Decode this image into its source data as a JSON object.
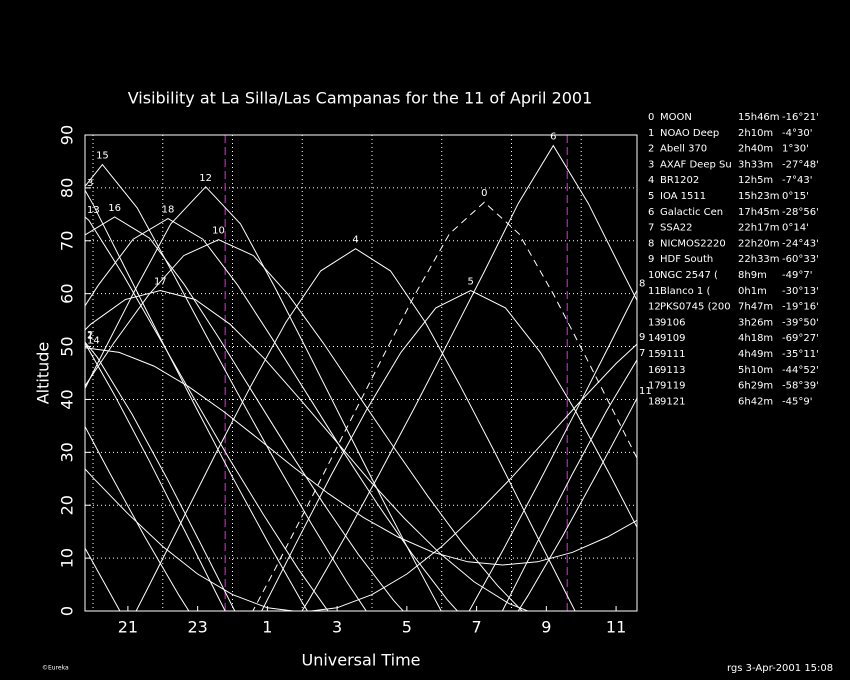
{
  "chart_data": {
    "type": "line",
    "title": "Visibility at La Silla/Las Campanas for the 11 of April 2001",
    "x_label": "Universal Time",
    "y_label": "Altitude",
    "xlim": [
      19.77,
      35.6
    ],
    "ylim": [
      0,
      90
    ],
    "xticks": [
      21,
      23,
      {
        "value": 25,
        "label": "1"
      },
      {
        "value": 27,
        "label": "3"
      },
      {
        "value": 29,
        "label": "5"
      },
      {
        "value": 31,
        "label": "7"
      },
      {
        "value": 33,
        "label": "9"
      },
      {
        "value": 35,
        "label": "11"
      }
    ],
    "xgrid": [
      20,
      22,
      24,
      26,
      28,
      30,
      32,
      34
    ],
    "yticks": [
      0,
      10,
      20,
      30,
      40,
      50,
      60,
      70,
      80,
      90
    ],
    "grid": true,
    "line_color": "#ffffff",
    "twilight": [
      23.79,
      33.6
    ],
    "twilight_color": "#c020c0",
    "footer": "rgs  3-Apr-2001 15:08",
    "logo": "©Eureka",
    "series": [
      {
        "label": "0",
        "name": "MOON",
        "ra": "15h46m",
        "dec": "-16°21'",
        "dash": true,
        "x": [
          23.22,
          24.22,
          25.22,
          26.22,
          27.22,
          28.22,
          29.22,
          30.22,
          31.22,
          32.22,
          33.22,
          34.22,
          35.22,
          36.22
        ],
        "values": [
          -16.3,
          -4.5,
          7.9,
          20.8,
          33.9,
          46.9,
          59.7,
          71.3,
          77.3,
          71.3,
          59.7,
          46.9,
          33.9,
          20.8
        ]
      },
      {
        "label": "1",
        "name": "NOAO Deep",
        "ra": "2h10m",
        "dec": "-4°30'",
        "x": [
          19.62,
          20.62,
          21.62,
          22.62,
          23.62,
          24.62
        ],
        "values": [
          52.4,
          40.8,
          28.3,
          15.3,
          2.2,
          -10.8
        ]
      },
      {
        "label": "2",
        "name": "Abell 370",
        "ra": "2h40m",
        "dec": "1°30'",
        "x": [
          19.12,
          20.12,
          21.12,
          22.12,
          23.12,
          24.12
        ],
        "values": [
          56.1,
          48.0,
          37.2,
          25.1,
          12.3,
          -0.7
        ]
      },
      {
        "label": "3",
        "name": "AXAF Deep Su",
        "ra": "3h33m",
        "dec": "-27°48'",
        "x": [
          19,
          20,
          21,
          22,
          23,
          24,
          25,
          26,
          27
        ],
        "values": [
          88.5,
          76.9,
          63.8,
          50.7,
          37.9,
          25.3,
          13.2,
          1.6,
          -9.1
        ]
      },
      {
        "label": "4",
        "name": "BR1202",
        "ra": "12h5m",
        "dec": "-7°43'",
        "x": [
          20.53,
          21.53,
          22.53,
          23.53,
          24.53,
          25.53,
          26.53,
          27.53,
          28.53,
          29.53,
          30.53,
          31.53,
          32.53,
          33.53,
          34.53
        ],
        "values": [
          -9.1,
          3.8,
          16.8,
          29.9,
          42.6,
          54.6,
          64.3,
          68.5,
          64.3,
          54.6,
          42.6,
          29.9,
          16.8,
          3.8,
          -9.1
        ]
      },
      {
        "label": "5",
        "name": "IOA 1511",
        "ra": "15h23m",
        "dec": "0°15'",
        "x": [
          23.83,
          24.83,
          25.83,
          26.83,
          27.83,
          28.83,
          29.83,
          30.83,
          31.83,
          32.83,
          33.83,
          34.83,
          35.83
        ],
        "values": [
          -13.2,
          -0.1,
          12.9,
          25.7,
          37.9,
          48.9,
          57.3,
          60.6,
          57.3,
          48.9,
          37.9,
          25.7,
          12.9
        ]
      },
      {
        "label": "6",
        "name": "Galactic Cen",
        "ra": "17h45m",
        "dec": "-28°56'",
        "x": [
          25.2,
          26.2,
          27.2,
          28.2,
          29.2,
          30.2,
          31.2,
          32.2,
          33.2,
          34.2,
          35.2,
          36.2
        ],
        "values": [
          -8.4,
          2.2,
          13.7,
          25.8,
          38.2,
          51.0,
          63.9,
          77.1,
          88.0,
          77.1,
          63.9,
          51.0
        ]
      },
      {
        "label": "7",
        "name": "SSA22",
        "ra": "22h17m",
        "dec": "0°14'",
        "x": [
          30.73,
          31.73,
          32.73,
          33.73,
          34.73,
          35.73
        ],
        "values": [
          -13.2,
          -0.1,
          12.9,
          25.7,
          37.9,
          48.9
        ]
      },
      {
        "label": "8",
        "name": "NICMOS2220",
        "ra": "22h20m",
        "dec": "-24°43'",
        "x": [
          18.78,
          19.78,
          20.78,
          21.78,
          null,
          29.78,
          30.78,
          31.78,
          32.78,
          33.78,
          34.78,
          35.78
        ],
        "values": [
          24.2,
          11.8,
          -0.1,
          -11.1,
          null,
          -11.1,
          -0.1,
          11.8,
          24.2,
          36.9,
          49.9,
          63.0
        ]
      },
      {
        "label": "9",
        "name": "HDF South",
        "ra": "22h33m",
        "dec": "-60°33'",
        "x": [
          19,
          20,
          21,
          22,
          23,
          24,
          25,
          26,
          27,
          28,
          29,
          30,
          31,
          32,
          33,
          34,
          35,
          36
        ],
        "values": [
          32.5,
          25.2,
          18.4,
          12.2,
          7.0,
          3.1,
          0.6,
          -0.2,
          0.6,
          3.1,
          7.0,
          12.2,
          18.4,
          25.2,
          32.5,
          39.8,
          46.8,
          52.9
        ]
      },
      {
        "label": "10",
        "name": "NGC 2547  (",
        "ra": "8h9m",
        "dec": "-49°7'",
        "x": [
          19.6,
          20.6,
          21.6,
          22.6,
          23.6,
          24.6,
          25.6,
          26.6,
          27.6,
          28.6,
          29.6,
          30.6,
          31.6,
          32.6
        ],
        "values": [
          40.9,
          50.7,
          59.8,
          67.2,
          70.2,
          67.2,
          59.8,
          50.7,
          40.9,
          31.2,
          21.7,
          12.8,
          4.8,
          -2.0
        ]
      },
      {
        "label": "11",
        "name": "Blanco 1   (",
        "ra": "0h1m",
        "dec": "-30°13'",
        "x": [
          19.47,
          20.47,
          21.47,
          22.47,
          23.47,
          null,
          31.47,
          32.47,
          33.47,
          34.47,
          35.47,
          36.47
        ],
        "values": [
          38.6,
          26.2,
          14.2,
          2.9,
          -7.5,
          null,
          -7.5,
          2.9,
          14.2,
          26.2,
          38.6,
          51.2
        ]
      },
      {
        "label": "12",
        "name": "PKS0745 (200",
        "ra": "7h47m",
        "dec": "-19°16'",
        "x": [
          19.23,
          20.23,
          21.23,
          22.23,
          23.23,
          24.23,
          25.23,
          26.23,
          27.23,
          28.23,
          29.23,
          30.23
        ],
        "values": [
          35.0,
          48.1,
          61.0,
          73.2,
          80.2,
          73.2,
          61.0,
          48.1,
          35.0,
          22.0,
          9.3,
          -3.0
        ]
      },
      {
        "label": "13",
        "name": "9106",
        "ra": "3h26m",
        "dec": "-39°50'",
        "x": [
          18.88,
          19.88,
          20.88,
          21.88,
          22.88,
          23.88,
          24.88,
          25.88,
          26.88,
          27.88
        ],
        "values": [
          79.4,
          73.9,
          63.4,
          51.9,
          40.4,
          29.1,
          18.3,
          8.0,
          -1.3,
          -9.3
        ]
      },
      {
        "label": "14",
        "name": "9109",
        "ra": "4h18m",
        "dec": "-69°27'",
        "x": [
          19.75,
          20.75,
          21.75,
          22.75,
          23.75,
          24.75,
          25.75,
          26.75,
          27.75,
          28.75,
          29.75,
          30.75,
          31.75,
          32.75,
          33.75,
          34.75,
          35.75
        ],
        "values": [
          49.8,
          48.9,
          46.3,
          42.4,
          37.7,
          32.5,
          27.2,
          22.2,
          17.7,
          14.0,
          11.1,
          9.3,
          8.7,
          9.3,
          11.1,
          14.0,
          17.7
        ]
      },
      {
        "label": "15",
        "name": "9111",
        "ra": "4h49m",
        "dec": "-35°11'",
        "x": [
          19.27,
          20.27,
          21.27,
          22.27,
          23.27,
          24.27,
          25.27,
          26.27,
          27.27,
          28.27
        ],
        "values": [
          76.2,
          84.4,
          76.2,
          64.1,
          51.8,
          39.7,
          27.8,
          16.4,
          5.6,
          -4.3
        ]
      },
      {
        "label": "16",
        "name": "9113",
        "ra": "5h10m",
        "dec": "-44°52'",
        "x": [
          19.62,
          20.62,
          21.62,
          22.62,
          23.62,
          24.62,
          25.62,
          26.62,
          27.62,
          28.62,
          29.62
        ],
        "values": [
          70.5,
          74.5,
          70.5,
          61.7,
          51.5,
          40.9,
          30.3,
          20.2,
          10.6,
          2.0,
          -5.3
        ]
      },
      {
        "label": "17",
        "name": "9119",
        "ra": "6h29m",
        "dec": "-58°39'",
        "x": [
          18.93,
          19.93,
          20.93,
          21.93,
          22.93,
          23.93,
          24.93,
          25.93,
          26.93,
          27.93,
          28.93,
          29.93,
          30.93,
          31.93,
          32.93
        ],
        "values": [
          47.6,
          54.2,
          58.9,
          60.6,
          58.9,
          54.2,
          47.6,
          40.1,
          32.4,
          24.7,
          17.5,
          11.0,
          5.5,
          1.4,
          -1.2
        ]
      },
      {
        "label": "18",
        "name": "9121",
        "ra": "6h42m",
        "dec": "-45°9'",
        "x": [
          19.15,
          20.15,
          21.15,
          22.15,
          23.15,
          24.15,
          25.15,
          26.15,
          27.15,
          28.15,
          29.15,
          30.15,
          31.15
        ],
        "values": [
          51.4,
          61.6,
          70.3,
          74.2,
          70.3,
          61.6,
          51.4,
          40.9,
          30.4,
          20.3,
          10.8,
          2.2,
          -5.1
        ]
      }
    ]
  }
}
